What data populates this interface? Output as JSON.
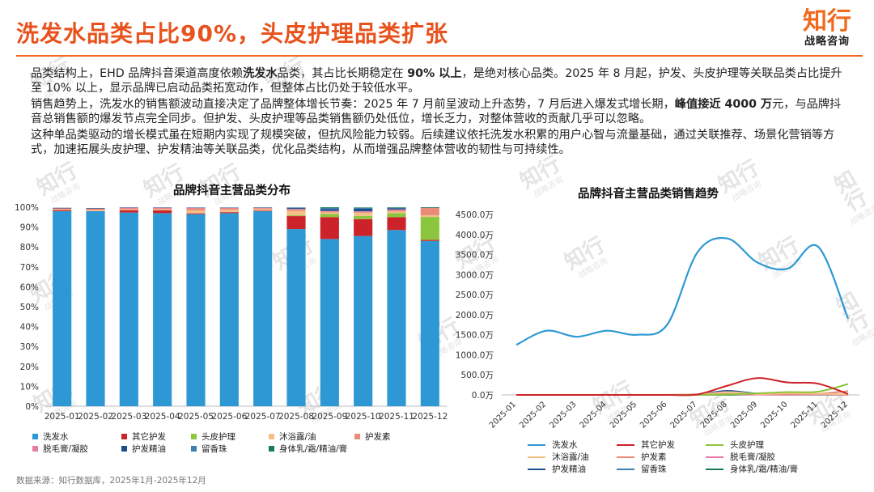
{
  "header": {
    "title": "洗发水品类占比90%，头皮护理品类扩张",
    "logo_main": "知行",
    "logo_sub": "战略咨询"
  },
  "paragraphs": {
    "p1": [
      {
        "t": "品类结构上，EHD 品牌抖音渠道高度依赖",
        "b": false
      },
      {
        "t": "洗发水",
        "b": true
      },
      {
        "t": "品类，其占比长期稳定在 ",
        "b": false
      },
      {
        "t": "90% 以上",
        "b": true
      },
      {
        "t": "，是绝对核心品类。2025 年 8 月起，护发、头皮护理等关联品类占比提升至 10% 以上，显示品牌已启动品类拓宽动作，但整体占比仍处于较低水平。",
        "b": false
      }
    ],
    "p2": [
      {
        "t": "销售趋势上，洗发水的销售额波动直接决定了品牌整体增长节奏：2025 年 7 月前呈波动上升态势，7 月后进入爆发式增长期，",
        "b": false
      },
      {
        "t": "峰值接近 4000 万",
        "b": true
      },
      {
        "t": "元，与品牌抖音总销售额的爆发节点完全同步。但护发、头皮护理等品类销售额仍处低位，增长乏力，对整体营收的贡献几乎可以忽略。",
        "b": false
      }
    ],
    "p3": [
      {
        "t": "这种单品类驱动的增长模式虽在短期内实现了规模突破，但抗风险能力较弱。后续建议依托洗发水积累的用户心智与流量基础，通过关联推荐、场景化营销等方式，加速拓展头皮护理、护发精油等关联品类，优化品类结构，从而增强品牌整体营收的韧性与可持续性。",
        "b": false
      }
    ]
  },
  "colors": {
    "title": "#e8521d",
    "accent": "#f06a1d"
  },
  "legend_categories": [
    {
      "name": "洗发水",
      "color": "#2e98d4"
    },
    {
      "name": "其它护发",
      "color": "#cc2229"
    },
    {
      "name": "头皮护理",
      "color": "#8cc63e"
    },
    {
      "name": "沐浴露/油",
      "color": "#f4c088"
    },
    {
      "name": "护发素",
      "color": "#ea8a78"
    },
    {
      "name": "脱毛膏/凝胶",
      "color": "#e77aa8"
    },
    {
      "name": "护发精油",
      "color": "#1f4e8c"
    },
    {
      "name": "留香珠",
      "color": "#3f7fb0"
    },
    {
      "name": "身体乳/霜/精油/膏",
      "color": "#197d54"
    }
  ],
  "chart_data": [
    {
      "type": "bar",
      "stacked": true,
      "title": "品牌抖音主营品类分布",
      "categories": [
        "2025-01",
        "2025-02",
        "2025-03",
        "2025-04",
        "2025-05",
        "2025-06",
        "2025-07",
        "2025-08",
        "2025-09",
        "2025-10",
        "2025-11",
        "2025-12"
      ],
      "ylim": [
        0,
        100
      ],
      "yticks": [
        "0%",
        "10%",
        "20%",
        "30%",
        "40%",
        "50%",
        "60%",
        "70%",
        "80%",
        "90%",
        "100%"
      ],
      "legend_position": "bottom",
      "series": [
        {
          "name": "洗发水",
          "values": [
            98,
            98,
            97.3,
            97,
            96.5,
            97,
            98,
            89,
            84,
            85.5,
            88.5,
            83
          ]
        },
        {
          "name": "其它护发",
          "values": [
            0.5,
            0,
            1.2,
            1.4,
            0.4,
            0.5,
            0.3,
            6.5,
            11,
            8.5,
            6.5,
            0.6
          ]
        },
        {
          "name": "头皮护理",
          "values": [
            0,
            0,
            0,
            0,
            0,
            0,
            0,
            0.4,
            1.6,
            1.6,
            2,
            11.5
          ]
        },
        {
          "name": "沐浴露/油",
          "values": [
            0.3,
            0.5,
            0.4,
            0.5,
            1.5,
            1.2,
            0.6,
            2.2,
            0.8,
            1.6,
            0.8,
            0.8
          ]
        },
        {
          "name": "护发素",
          "values": [
            0.6,
            0.8,
            0.5,
            0.5,
            1,
            0.7,
            0.6,
            0.8,
            0.5,
            0.5,
            0.7,
            3.8
          ]
        },
        {
          "name": "脱毛膏/凝胶",
          "values": [
            0,
            0,
            0.3,
            0.3,
            0.2,
            0.2,
            0.2,
            0.2,
            0.2,
            0.2,
            0.3,
            0
          ]
        },
        {
          "name": "护发精油",
          "values": [
            0.3,
            0.3,
            0.2,
            0.2,
            0.2,
            0.2,
            0.2,
            0.6,
            1,
            1.3,
            0.7,
            0.2
          ]
        },
        {
          "name": "留香珠",
          "values": [
            0,
            0,
            0,
            0,
            0,
            0,
            0,
            0.2,
            0.6,
            0.5,
            0.3,
            0
          ]
        },
        {
          "name": "身体乳/霜/精油/膏",
          "values": [
            0,
            0,
            0,
            0,
            0,
            0,
            0,
            0,
            0.3,
            0.2,
            0.1,
            0.1
          ]
        }
      ]
    },
    {
      "type": "line",
      "title": "品牌抖音主营品类销售趋势",
      "x": [
        "2025-01",
        "2025-02",
        "2025-03",
        "2025-04",
        "2025-05",
        "2025-06",
        "2025-07",
        "2025-08",
        "2025-09",
        "2025-10",
        "2025-11",
        "2025-12"
      ],
      "ylim": [
        0,
        4500
      ],
      "yticks": [
        "0.0万",
        "500.0万",
        "1000.0万",
        "1500.0万",
        "2000.0万",
        "2500.0万",
        "3000.0万",
        "3500.0万",
        "4000.0万",
        "4500.0万"
      ],
      "legend_position": "bottom",
      "series": [
        {
          "name": "洗发水",
          "values": [
            1250,
            1600,
            1450,
            1600,
            1500,
            1750,
            3550,
            3900,
            3300,
            3150,
            3700,
            1900
          ]
        },
        {
          "name": "其它护发",
          "values": [
            0,
            0,
            0,
            0,
            0,
            0,
            10,
            230,
            420,
            310,
            280,
            20
          ]
        },
        {
          "name": "头皮护理",
          "values": [
            0,
            0,
            0,
            0,
            0,
            0,
            0,
            10,
            40,
            70,
            80,
            270
          ]
        },
        {
          "name": "沐浴露/油",
          "values": [
            0,
            0,
            0,
            0,
            0,
            0,
            10,
            70,
            25,
            40,
            30,
            10
          ]
        },
        {
          "name": "护发素",
          "values": [
            0,
            0,
            0,
            0,
            0,
            0,
            15,
            25,
            20,
            20,
            30,
            90
          ]
        },
        {
          "name": "脱毛膏/凝胶",
          "values": [
            0,
            0,
            0,
            0,
            0,
            0,
            5,
            10,
            8,
            5,
            10,
            0
          ]
        },
        {
          "name": "护发精油",
          "values": [
            0,
            0,
            0,
            0,
            0,
            0,
            10,
            100,
            30,
            40,
            25,
            5
          ]
        },
        {
          "name": "留香珠",
          "values": [
            0,
            0,
            0,
            0,
            0,
            0,
            0,
            10,
            25,
            15,
            10,
            0
          ]
        },
        {
          "name": "身体乳/霜/精油/膏",
          "values": [
            0,
            0,
            0,
            0,
            0,
            0,
            0,
            0,
            10,
            5,
            5,
            5
          ]
        }
      ]
    }
  ],
  "footer": {
    "source": "数据来源：知行数据库，2025年1月-2025年12月"
  },
  "watermark": {
    "main": "知行",
    "sub": "战略咨询"
  }
}
